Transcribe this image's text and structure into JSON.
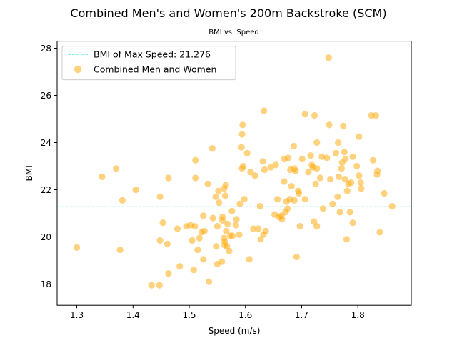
{
  "chart_data": {
    "type": "scatter",
    "title": "Combined Men's and Women's 200m Backstroke (SCM)",
    "subtitle": "BMI vs. Speed",
    "xlabel": "Speed (m/s)",
    "ylabel": "BMI",
    "xlim": [
      1.265,
      1.895
    ],
    "ylim": [
      17.1,
      28.3
    ],
    "xticks": [
      1.3,
      1.4,
      1.5,
      1.6,
      1.7,
      1.8
    ],
    "yticks": [
      18,
      20,
      22,
      24,
      26,
      28
    ],
    "xtick_labels": [
      "1.3",
      "1.4",
      "1.5",
      "1.6",
      "1.7",
      "1.8"
    ],
    "ytick_labels": [
      "18",
      "20",
      "22",
      "24",
      "26",
      "28"
    ],
    "grid": false,
    "legend_position": "top-left",
    "reference_line": {
      "orientation": "horizontal",
      "y": 21.276,
      "label": "BMI of Max Speed: 21.276",
      "color": "#00e5ee",
      "style": "dashed"
    },
    "series": [
      {
        "name": "Combined Men and Women",
        "color": "#ffa500",
        "points": [
          [
            1.3,
            19.55
          ],
          [
            1.345,
            22.55
          ],
          [
            1.37,
            22.9
          ],
          [
            1.377,
            19.45
          ],
          [
            1.381,
            21.55
          ],
          [
            1.405,
            22.0
          ],
          [
            1.433,
            17.95
          ],
          [
            1.447,
            17.95
          ],
          [
            1.448,
            21.7
          ],
          [
            1.448,
            19.85
          ],
          [
            1.453,
            20.6
          ],
          [
            1.461,
            19.7
          ],
          [
            1.463,
            22.5
          ],
          [
            1.463,
            18.45
          ],
          [
            1.479,
            20.35
          ],
          [
            1.483,
            18.75
          ],
          [
            1.495,
            20.45
          ],
          [
            1.502,
            20.5
          ],
          [
            1.505,
            19.85
          ],
          [
            1.508,
            18.6
          ],
          [
            1.51,
            20.45
          ],
          [
            1.511,
            23.25
          ],
          [
            1.511,
            22.5
          ],
          [
            1.515,
            19.45
          ],
          [
            1.518,
            19.95
          ],
          [
            1.522,
            20.2
          ],
          [
            1.525,
            20.9
          ],
          [
            1.527,
            20.25
          ],
          [
            1.525,
            19.05
          ],
          [
            1.533,
            22.25
          ],
          [
            1.535,
            18.1
          ],
          [
            1.541,
            23.75
          ],
          [
            1.542,
            20.8
          ],
          [
            1.548,
            19.6
          ],
          [
            1.547,
            21.7
          ],
          [
            1.55,
            20.45
          ],
          [
            1.552,
            21.95
          ],
          [
            1.55,
            18.85
          ],
          [
            1.553,
            21.45
          ],
          [
            1.558,
            18.95
          ],
          [
            1.559,
            20.85
          ],
          [
            1.559,
            20.7
          ],
          [
            1.562,
            19.95
          ],
          [
            1.563,
            19.8
          ],
          [
            1.563,
            19.65
          ],
          [
            1.562,
            22.05
          ],
          [
            1.564,
            21.75
          ],
          [
            1.565,
            22.2
          ],
          [
            1.566,
            20.25
          ],
          [
            1.567,
            19.6
          ],
          [
            1.568,
            20.55
          ],
          [
            1.571,
            19.4
          ],
          [
            1.573,
            20.05
          ],
          [
            1.576,
            21.1
          ],
          [
            1.577,
            20.05
          ],
          [
            1.583,
            20.5
          ],
          [
            1.584,
            20.75
          ],
          [
            1.589,
            20.1
          ],
          [
            1.59,
            21.4
          ],
          [
            1.593,
            23.8
          ],
          [
            1.594,
            22.9
          ],
          [
            1.594,
            24.35
          ],
          [
            1.595,
            24.75
          ],
          [
            1.596,
            23.0
          ],
          [
            1.598,
            21.6
          ],
          [
            1.603,
            23.55
          ],
          [
            1.607,
            19.05
          ],
          [
            1.609,
            22.75
          ],
          [
            1.614,
            20.35
          ],
          [
            1.617,
            22.6
          ],
          [
            1.623,
            20.35
          ],
          [
            1.626,
            21.3
          ],
          [
            1.627,
            19.9
          ],
          [
            1.631,
            23.2
          ],
          [
            1.632,
            20.1
          ],
          [
            1.633,
            25.35
          ],
          [
            1.634,
            22.85
          ],
          [
            1.636,
            20.25
          ],
          [
            1.645,
            22.95
          ],
          [
            1.652,
            20.95
          ],
          [
            1.654,
            23.05
          ],
          [
            1.657,
            21.6
          ],
          [
            1.66,
            20.85
          ],
          [
            1.664,
            20.9
          ],
          [
            1.665,
            20.75
          ],
          [
            1.669,
            23.3
          ],
          [
            1.669,
            22.35
          ],
          [
            1.671,
            21.05
          ],
          [
            1.673,
            21.5
          ],
          [
            1.675,
            21.2
          ],
          [
            1.676,
            23.35
          ],
          [
            1.679,
            21.6
          ],
          [
            1.68,
            22.85
          ],
          [
            1.682,
            22.15
          ],
          [
            1.686,
            23.85
          ],
          [
            1.687,
            22.9
          ],
          [
            1.687,
            21.55
          ],
          [
            1.689,
            22.8
          ],
          [
            1.691,
            19.15
          ],
          [
            1.694,
            21.95
          ],
          [
            1.695,
            21.85
          ],
          [
            1.697,
            20.45
          ],
          [
            1.701,
            23.3
          ],
          [
            1.706,
            25.2
          ],
          [
            1.706,
            21.6
          ],
          [
            1.712,
            22.75
          ],
          [
            1.716,
            23.45
          ],
          [
            1.718,
            23.05
          ],
          [
            1.72,
            22.95
          ],
          [
            1.722,
            20.65
          ],
          [
            1.723,
            25.15
          ],
          [
            1.725,
            22.25
          ],
          [
            1.727,
            22.9
          ],
          [
            1.727,
            24.0
          ],
          [
            1.727,
            20.45
          ],
          [
            1.733,
            22.5
          ],
          [
            1.736,
            23.4
          ],
          [
            1.738,
            21.2
          ],
          [
            1.745,
            23.35
          ],
          [
            1.748,
            27.6
          ],
          [
            1.749,
            24.75
          ],
          [
            1.751,
            22.45
          ],
          [
            1.755,
            21.4
          ],
          [
            1.761,
            23.55
          ],
          [
            1.764,
            21.7
          ],
          [
            1.765,
            24.0
          ],
          [
            1.766,
            22.55
          ],
          [
            1.768,
            21.05
          ],
          [
            1.771,
            22.9
          ],
          [
            1.772,
            23.15
          ],
          [
            1.774,
            24.7
          ],
          [
            1.776,
            23.6
          ],
          [
            1.777,
            22.45
          ],
          [
            1.778,
            23.3
          ],
          [
            1.78,
            19.9
          ],
          [
            1.781,
            21.95
          ],
          [
            1.783,
            22.25
          ],
          [
            1.786,
            21.05
          ],
          [
            1.788,
            22.3
          ],
          [
            1.791,
            20.6
          ],
          [
            1.791,
            23.4
          ],
          [
            1.798,
            23.0
          ],
          [
            1.802,
            22.6
          ],
          [
            1.802,
            24.25
          ],
          [
            1.805,
            22.3
          ],
          [
            1.806,
            22.05
          ],
          [
            1.824,
            25.15
          ],
          [
            1.827,
            23.25
          ],
          [
            1.832,
            25.15
          ],
          [
            1.834,
            22.65
          ],
          [
            1.835,
            22.8
          ],
          [
            1.839,
            20.2
          ],
          [
            1.847,
            21.85
          ],
          [
            1.861,
            21.3
          ]
        ]
      }
    ]
  }
}
